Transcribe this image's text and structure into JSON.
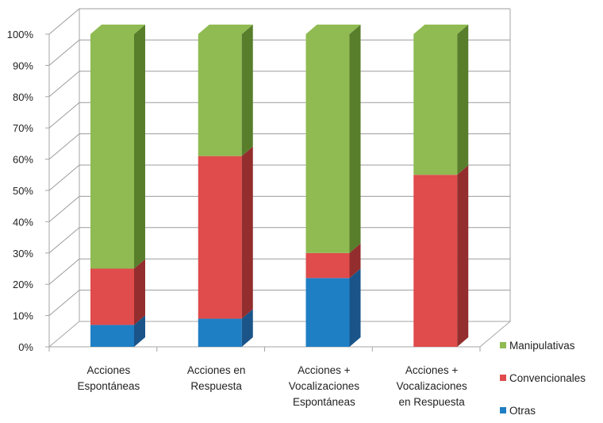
{
  "chart_data": {
    "type": "bar",
    "stacked": true,
    "percent": true,
    "three_d": true,
    "title": "",
    "xlabel": "",
    "ylabel": "",
    "ylim": [
      0,
      100
    ],
    "y_ticks": [
      "0%",
      "10%",
      "20%",
      "30%",
      "40%",
      "50%",
      "60%",
      "70%",
      "80%",
      "90%",
      "100%"
    ],
    "grid": true,
    "legend_position": "right-bottom",
    "categories": [
      [
        "Acciones",
        "Espontáneas"
      ],
      [
        "Acciones en",
        "Respuesta"
      ],
      [
        "Acciones +",
        "Vocalizaciones",
        "Espontáneas"
      ],
      [
        "Acciones +",
        "Vocalizaciones",
        "en Respuesta"
      ]
    ],
    "series": [
      {
        "name": "Otras",
        "values": [
          7,
          9,
          22,
          0
        ],
        "color": "#1f7fc4",
        "side_color": "#1a5489"
      },
      {
        "name": "Convencionales",
        "values": [
          18,
          52,
          8,
          55
        ],
        "color": "#e04b4b",
        "side_color": "#942d2d"
      },
      {
        "name": "Manipulativas",
        "values": [
          75,
          39,
          70,
          45
        ],
        "color": "#8fbb52",
        "side_color": "#587e2c"
      }
    ],
    "legend_order": [
      "Manipulativas",
      "Convencionales",
      "Otras"
    ]
  }
}
